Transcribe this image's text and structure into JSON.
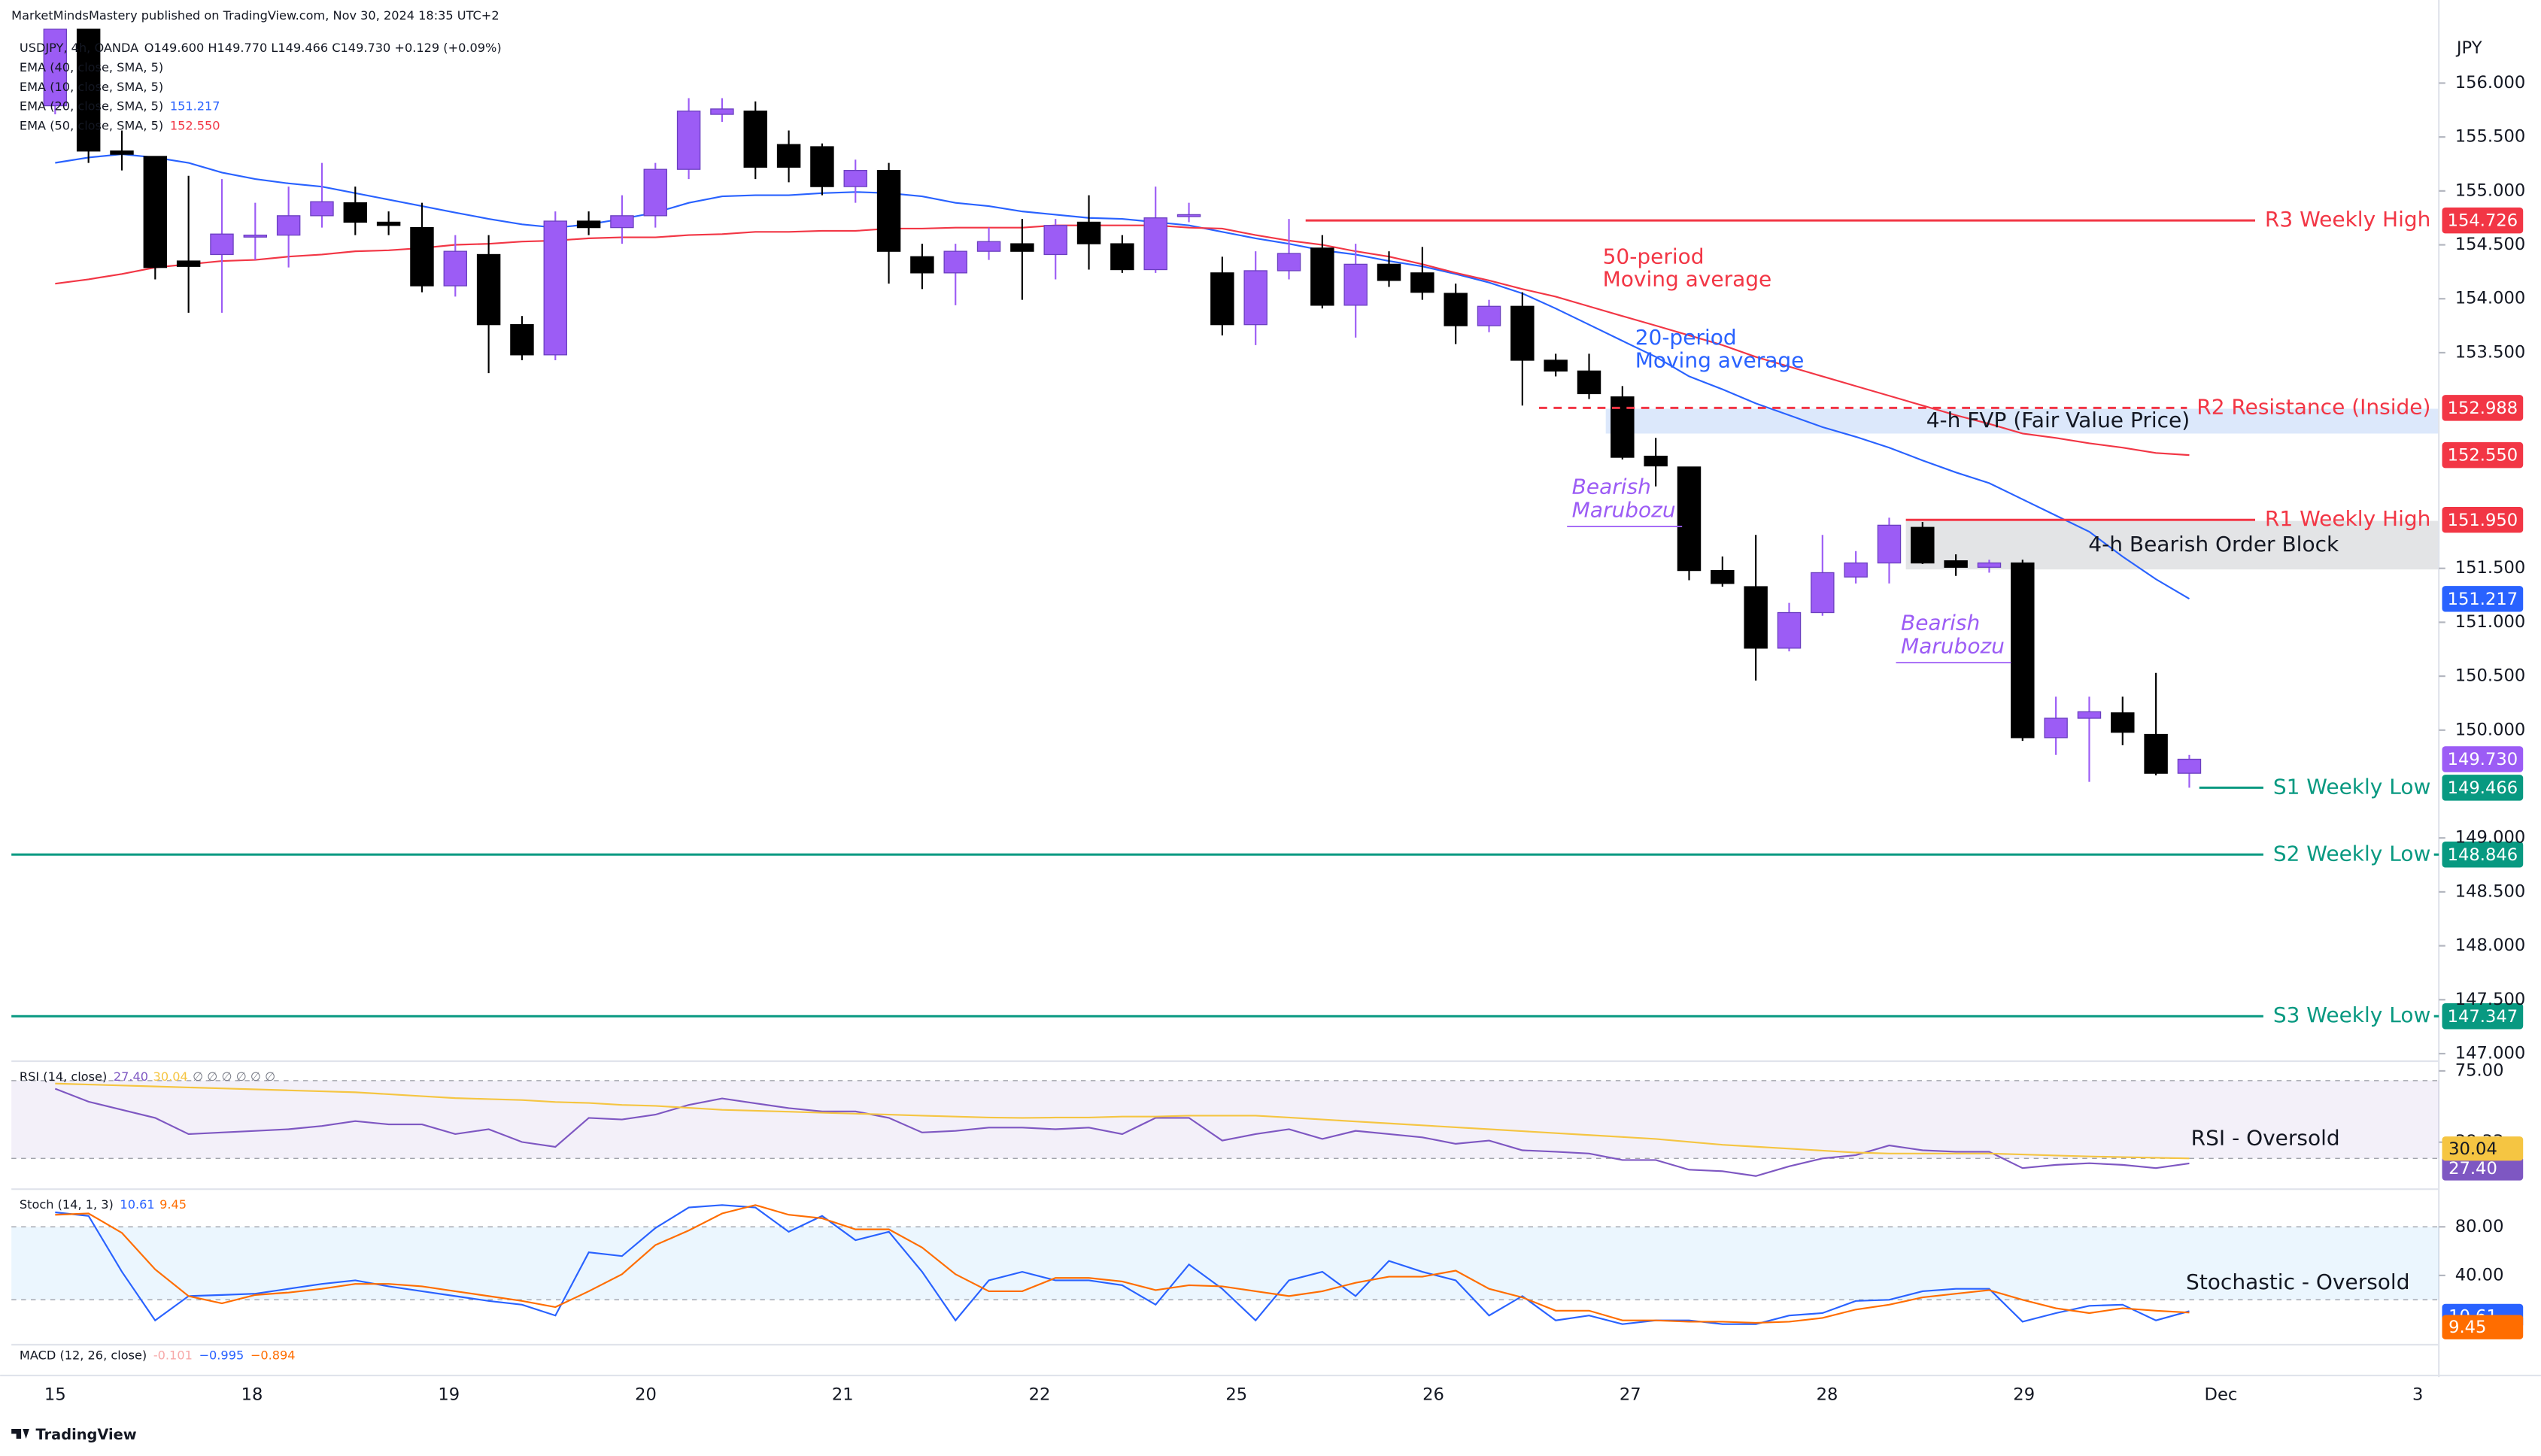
{
  "header": {
    "publisher": "MarketMindsMastery published on TradingView.com, Nov 30, 2024 18:35 UTC+2",
    "symbol": "USDJPY, 4h, OANDA",
    "ohlc_text": "O149.600 H149.770 L149.466 C149.730 +0.129 (+0.09%)",
    "currency": "JPY",
    "indicator_legend": [
      "EMA (40, close, SMA, 5)",
      "EMA (10, close, SMA, 5)",
      "EMA (20, close, SMA, 5)",
      "EMA (50, close, SMA, 5)"
    ],
    "footer": "TradingView"
  },
  "chart_data": [
    {
      "type": "candlestick",
      "ylim": [
        146.96,
        156.5
      ],
      "yticks": [
        {
          "value": 156,
          "label": "156.000"
        },
        {
          "value": 155.5,
          "label": "155.500"
        },
        {
          "value": 155,
          "label": "155.000"
        },
        {
          "value": 154.5,
          "label": "154.500"
        },
        {
          "value": 154,
          "label": "154.000"
        },
        {
          "value": 153.5,
          "label": "153.500"
        },
        {
          "value": 151.5,
          "label": "151.500"
        },
        {
          "value": 151,
          "label": "151.000"
        },
        {
          "value": 150.5,
          "label": "150.500"
        },
        {
          "value": 150,
          "label": "150.000"
        },
        {
          "value": 149,
          "label": "149.000"
        },
        {
          "value": 148.5,
          "label": "148.500"
        },
        {
          "value": 148,
          "label": "148.000"
        },
        {
          "value": 147.5,
          "label": "147.500"
        },
        {
          "value": 147,
          "label": "147.000"
        }
      ],
      "x_labels": [
        "15",
        "18",
        "19",
        "20",
        "21",
        "22",
        "25",
        "26",
        "27",
        "28",
        "29",
        "Dec",
        "3"
      ],
      "up_color": "#9c5cf5",
      "down_color": "#000000",
      "close_label": "149.730",
      "ohlc": [
        [
          155.79,
          156.5,
          155.71,
          156.5
        ],
        [
          156.5,
          156.5,
          155.26,
          155.37
        ],
        [
          155.37,
          155.56,
          155.19,
          155.34
        ],
        [
          155.32,
          155.32,
          154.18,
          154.29
        ],
        [
          154.35,
          155.14,
          153.87,
          154.3
        ],
        [
          154.41,
          155.11,
          153.87,
          154.6
        ],
        [
          154.58,
          154.89,
          154.36,
          154.59
        ],
        [
          154.59,
          155.04,
          154.29,
          154.77
        ],
        [
          154.77,
          155.26,
          154.66,
          154.9
        ],
        [
          154.89,
          155.04,
          154.59,
          154.71
        ],
        [
          154.71,
          154.81,
          154.59,
          154.68
        ],
        [
          154.66,
          154.89,
          154.06,
          154.12
        ],
        [
          154.12,
          154.59,
          154.02,
          154.44
        ],
        [
          154.41,
          154.59,
          153.31,
          153.76
        ],
        [
          153.76,
          153.84,
          153.43,
          153.48
        ],
        [
          153.48,
          154.81,
          153.43,
          154.72
        ],
        [
          154.72,
          154.81,
          154.59,
          154.66
        ],
        [
          154.66,
          154.96,
          154.51,
          154.77
        ],
        [
          154.77,
          155.26,
          154.66,
          155.2
        ],
        [
          155.2,
          155.86,
          155.11,
          155.74
        ],
        [
          155.71,
          155.86,
          155.64,
          155.76
        ],
        [
          155.74,
          155.83,
          155.11,
          155.22
        ],
        [
          155.43,
          155.56,
          155.08,
          155.22
        ],
        [
          155.41,
          155.44,
          154.96,
          155.04
        ],
        [
          155.04,
          155.29,
          154.89,
          155.19
        ],
        [
          155.19,
          155.26,
          154.14,
          154.44
        ],
        [
          154.39,
          154.51,
          154.09,
          154.24
        ],
        [
          154.24,
          154.51,
          153.94,
          154.44
        ],
        [
          154.44,
          154.66,
          154.36,
          154.53
        ],
        [
          154.51,
          154.74,
          153.99,
          154.44
        ],
        [
          154.41,
          154.74,
          154.18,
          154.68
        ],
        [
          154.71,
          154.96,
          154.27,
          154.51
        ],
        [
          154.51,
          154.59,
          154.24,
          154.27
        ],
        [
          154.27,
          155.04,
          154.24,
          154.75
        ],
        [
          154.77,
          154.89,
          154.71,
          154.78
        ],
        [
          154.24,
          154.39,
          153.66,
          153.76
        ],
        [
          153.76,
          154.44,
          153.57,
          154.26
        ],
        [
          154.26,
          154.74,
          154.18,
          154.42
        ],
        [
          154.47,
          154.59,
          153.91,
          153.94
        ],
        [
          153.94,
          154.51,
          153.64,
          154.32
        ],
        [
          154.32,
          154.44,
          154.11,
          154.17
        ],
        [
          154.24,
          154.48,
          153.99,
          154.06
        ],
        [
          154.05,
          154.14,
          153.58,
          153.75
        ],
        [
          153.75,
          153.99,
          153.69,
          153.93
        ],
        [
          153.93,
          154.06,
          153.01,
          153.43
        ],
        [
          153.43,
          153.49,
          153.28,
          153.33
        ],
        [
          153.33,
          153.49,
          153.07,
          153.12
        ],
        [
          153.09,
          153.19,
          152.51,
          152.53
        ],
        [
          152.54,
          152.71,
          152.26,
          152.45
        ],
        [
          152.44,
          152.44,
          151.39,
          151.48
        ],
        [
          151.48,
          151.61,
          151.33,
          151.36
        ],
        [
          151.33,
          151.81,
          150.46,
          150.76
        ],
        [
          150.76,
          151.18,
          150.73,
          151.09
        ],
        [
          151.09,
          151.81,
          151.06,
          151.46
        ],
        [
          151.42,
          151.66,
          151.36,
          151.55
        ],
        [
          151.55,
          151.97,
          151.36,
          151.9
        ],
        [
          151.88,
          151.93,
          151.54,
          151.55
        ],
        [
          151.57,
          151.63,
          151.43,
          151.51
        ],
        [
          151.51,
          151.58,
          151.46,
          151.55
        ],
        [
          151.55,
          151.58,
          149.9,
          149.93
        ],
        [
          149.93,
          150.31,
          149.77,
          150.11
        ],
        [
          150.11,
          150.31,
          149.52,
          150.17
        ],
        [
          150.16,
          150.31,
          149.86,
          149.98
        ],
        [
          149.96,
          150.53,
          149.58,
          149.6
        ],
        [
          149.6,
          149.77,
          149.466,
          149.73
        ]
      ],
      "series": [
        {
          "name_lines": [
            "20-period",
            "Moving average"
          ],
          "color": "#2962ff",
          "badge": "151.217",
          "values": [
            155.26,
            155.31,
            155.34,
            155.31,
            155.26,
            155.17,
            155.11,
            155.07,
            155.04,
            154.98,
            154.92,
            154.86,
            154.8,
            154.74,
            154.69,
            154.66,
            154.69,
            154.74,
            154.8,
            154.89,
            154.95,
            154.96,
            154.96,
            154.98,
            154.99,
            154.98,
            154.95,
            154.89,
            154.86,
            154.81,
            154.78,
            154.75,
            154.74,
            154.71,
            154.68,
            154.62,
            154.56,
            154.51,
            154.45,
            154.41,
            154.35,
            154.3,
            154.23,
            154.15,
            154.05,
            153.91,
            153.76,
            153.61,
            153.46,
            153.28,
            153.16,
            153.03,
            152.92,
            152.81,
            152.72,
            152.62,
            152.5,
            152.39,
            152.29,
            152.14,
            151.99,
            151.84,
            151.61,
            151.4,
            151.217
          ]
        },
        {
          "name_lines": [
            "50-period",
            "Moving average"
          ],
          "color": "#f23645",
          "badge": "152.550",
          "values": [
            154.14,
            154.18,
            154.23,
            154.29,
            154.32,
            154.35,
            154.36,
            154.39,
            154.41,
            154.44,
            154.45,
            154.47,
            154.5,
            154.51,
            154.53,
            154.54,
            154.56,
            154.57,
            154.57,
            154.59,
            154.6,
            154.62,
            154.62,
            154.63,
            154.63,
            154.65,
            154.65,
            154.66,
            154.66,
            154.66,
            154.68,
            154.68,
            154.68,
            154.68,
            154.66,
            154.65,
            154.59,
            154.54,
            154.5,
            154.44,
            154.39,
            154.32,
            154.24,
            154.17,
            154.09,
            154.02,
            153.93,
            153.84,
            153.75,
            153.66,
            153.57,
            153.46,
            153.37,
            153.28,
            153.19,
            153.1,
            153.01,
            152.92,
            152.84,
            152.75,
            152.71,
            152.66,
            152.62,
            152.57,
            152.55
          ]
        }
      ],
      "levels": [
        {
          "name": "R3 Weekly High",
          "value": 154.726,
          "label": "154.726",
          "color": "#f23645",
          "dashed": false
        },
        {
          "name": "R2 Resistance (Inside)",
          "value": 152.988,
          "label": "152.988",
          "color": "#f23645",
          "dashed": true
        },
        {
          "name": "R1 Weekly High",
          "value": 151.95,
          "label": "151.950",
          "color": "#f23645",
          "dashed": false
        },
        {
          "name": "S1 Weekly Low",
          "value": 149.466,
          "label": "149.466",
          "color": "#089981",
          "dashed": false
        },
        {
          "name": "S2 Weekly Low",
          "value": 148.846,
          "label": "148.846",
          "color": "#089981",
          "dashed": false
        },
        {
          "name": "S3 Weekly Low",
          "value": 147.347,
          "label": "147.347",
          "color": "#089981",
          "dashed": false
        }
      ],
      "zones": [
        {
          "name": "4-h FVP (Fair Value Price)",
          "top": 152.98,
          "bottom": 152.75,
          "color": "#dce8fb"
        },
        {
          "name": "4-h Bearish Order Block",
          "top": 151.94,
          "bottom": 151.49,
          "color": "#e3e4e6"
        }
      ],
      "annotations": [
        {
          "lines": [
            "Bearish",
            "Marubozu"
          ],
          "color": "#9c5cf5"
        },
        {
          "lines": [
            "Bearish",
            "Marubozu"
          ],
          "color": "#9c5cf5"
        }
      ]
    },
    {
      "type": "line",
      "legend": "RSI (14, close)",
      "legend_extra": "∅ ∅ ∅ ∅ ∅ ∅",
      "ylim": [
        15,
        80
      ],
      "yticks": [
        {
          "value": 75,
          "label": "75.00"
        },
        {
          "value": 38.33,
          "label": "38.33"
        }
      ],
      "band": [
        30,
        70
      ],
      "band_color": "#7e57c2",
      "annotation": "RSI - Oversold",
      "series": [
        {
          "name": "RSI",
          "color": "#7e57c2",
          "badge": "27.40",
          "values": [
            65.8,
            59.2,
            55,
            50.8,
            42.5,
            43.3,
            44.2,
            45,
            46.7,
            49.2,
            47.5,
            47.5,
            42.5,
            45,
            38.4,
            35.9,
            50.8,
            50,
            52.5,
            57.5,
            60.8,
            58.3,
            55.8,
            54.2,
            54.2,
            50.8,
            43.3,
            44.2,
            45.8,
            45.8,
            45,
            45.8,
            42.5,
            50.8,
            50.8,
            39.2,
            42.5,
            45,
            40,
            44.2,
            42.5,
            40.8,
            37.5,
            39.2,
            34.2,
            33.4,
            32.5,
            29.2,
            29.2,
            24.2,
            23.4,
            20.9,
            25.9,
            30,
            31.7,
            36.7,
            34.2,
            33.4,
            33.4,
            25,
            26.7,
            27.5,
            26.7,
            25,
            27.4
          ]
        },
        {
          "name": "RSI MA",
          "color": "#f5c542",
          "badge": "30.04",
          "values": [
            68.5,
            68,
            67.5,
            67,
            66.5,
            66,
            65.5,
            65,
            64.5,
            64,
            63,
            62,
            61,
            60.5,
            60,
            59,
            58.5,
            57.5,
            57,
            56,
            55,
            54.5,
            54,
            53.5,
            53,
            52.5,
            52,
            51.5,
            51,
            50.8,
            51,
            51,
            51.5,
            51.5,
            52,
            52,
            52,
            51,
            50,
            49,
            48,
            47,
            46,
            45,
            44,
            43,
            42,
            41,
            40,
            38.5,
            37,
            36,
            35,
            34,
            33,
            32.5,
            32.5,
            32.5,
            32.5,
            32,
            31.5,
            31,
            30.7,
            30.3,
            30.04
          ]
        }
      ]
    },
    {
      "type": "line",
      "legend": "Stoch (14, 1, 3)",
      "ylim": [
        -17,
        107
      ],
      "yticks": [
        {
          "value": 80,
          "label": "80.00"
        },
        {
          "value": 40,
          "label": "40.00"
        }
      ],
      "band": [
        20,
        80
      ],
      "band_color": "#2196f3",
      "annotation": "Stochastic - Oversold",
      "series": [
        {
          "name": "%K",
          "color": "#2962ff",
          "badge": "10.61",
          "values": [
            92,
            89,
            43,
            3,
            23,
            24,
            25,
            29,
            33,
            36,
            31,
            27,
            23,
            19,
            16,
            7,
            59,
            56,
            79,
            96,
            98,
            96,
            76,
            89,
            69,
            76,
            43,
            3,
            36,
            43,
            36,
            36,
            32,
            16,
            49,
            29,
            3,
            36,
            43,
            23,
            52,
            43,
            36,
            7,
            23,
            3,
            7,
            0,
            3,
            3,
            0,
            0,
            7,
            9,
            19,
            20,
            27,
            29,
            29,
            2,
            9,
            15,
            16,
            3,
            10.61
          ]
        },
        {
          "name": "%D",
          "color": "#ff6d00",
          "badge": "9.45",
          "values": [
            90,
            91,
            75,
            45,
            23,
            17,
            24,
            26,
            29,
            33,
            33,
            31,
            27,
            23,
            19,
            14,
            27,
            41,
            65,
            77,
            91,
            98,
            90,
            87,
            78,
            78,
            63,
            41,
            27,
            27,
            38,
            38,
            35,
            28,
            32,
            31,
            27,
            23,
            27,
            34,
            39,
            39,
            44,
            29,
            22,
            11,
            11,
            3,
            3,
            2,
            2,
            1,
            2,
            5,
            12,
            16,
            22,
            25,
            28,
            20,
            13,
            9,
            13,
            11,
            9.45
          ]
        }
      ]
    },
    {
      "type": "macd",
      "legend": "MACD (12, 26, close)",
      "legend_values": [
        "-0.101",
        "−0.995",
        "−0.894"
      ],
      "colors": [
        "#f7a9a9",
        "#2962ff",
        "#ff6d00"
      ]
    }
  ]
}
